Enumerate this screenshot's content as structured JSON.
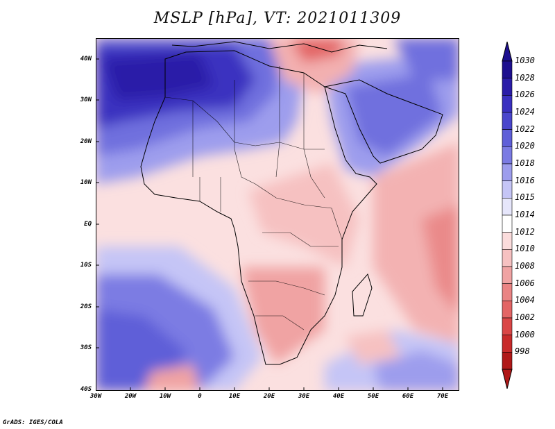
{
  "title": "MSLP [hPa], VT: 2021011309",
  "credit": "GrADS: IGES/COLA",
  "map": {
    "lat_labels": [
      "40N",
      "30N",
      "20N",
      "10N",
      "EQ",
      "10S",
      "20S",
      "30S",
      "40S"
    ],
    "lon_labels": [
      "30W",
      "20W",
      "10W",
      "0",
      "10E",
      "20E",
      "30E",
      "40E",
      "50E",
      "60E",
      "70E"
    ]
  },
  "colorbar": {
    "labels": [
      "1030",
      "1028",
      "1026",
      "1024",
      "1022",
      "1020",
      "1018",
      "1016",
      "1015",
      "1014",
      "1012",
      "1010",
      "1008",
      "1006",
      "1004",
      "1002",
      "1000",
      "998"
    ],
    "colors": [
      "#1d0f8f",
      "#2a1ca8",
      "#3a30c0",
      "#4a46cc",
      "#5f5fd8",
      "#7b7be3",
      "#9d9ded",
      "#c5c5f6",
      "#e6e6fb",
      "#ffffff",
      "#fbdcdc",
      "#f6c1c1",
      "#f0a3a3",
      "#ea8484",
      "#e36565",
      "#da4646",
      "#c82a2a",
      "#b01818"
    ],
    "arrow_top_color": "#1d0f8f",
    "arrow_bottom_color": "#b01818"
  }
}
